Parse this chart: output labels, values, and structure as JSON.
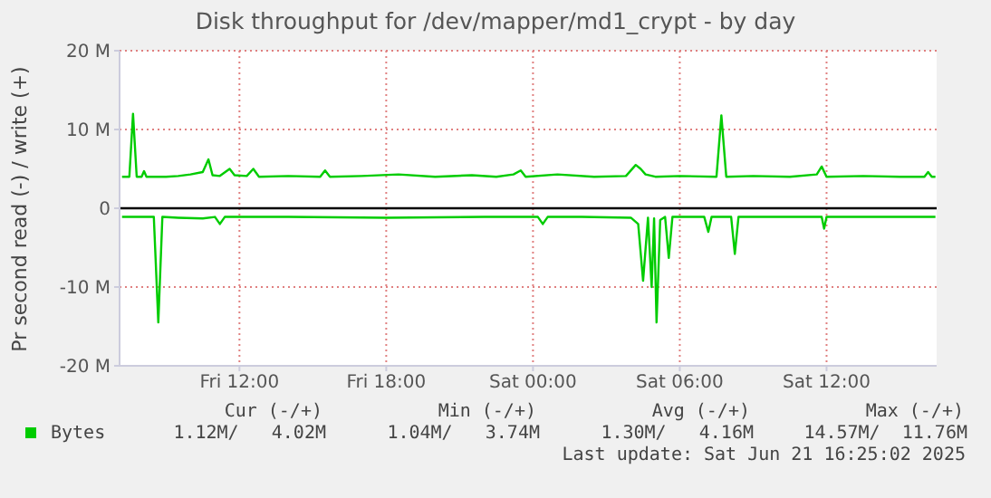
{
  "chart_data": {
    "type": "line",
    "title": "Disk throughput for /dev/mapper/md1_crypt - by day",
    "ylabel": "Pr second read (-) / write (+)",
    "xlim": [
      "2025-06-20T07:06",
      "2025-06-21T16:30"
    ],
    "xticks": [
      {
        "value": "2025-06-20T12:00",
        "label": "Fri 12:00"
      },
      {
        "value": "2025-06-20T18:00",
        "label": "Fri 18:00"
      },
      {
        "value": "2025-06-21T00:00",
        "label": "Sat 00:00"
      },
      {
        "value": "2025-06-21T06:00",
        "label": "Sat 06:00"
      },
      {
        "value": "2025-06-21T12:00",
        "label": "Sat 12:00"
      }
    ],
    "ylim": [
      -20,
      20
    ],
    "yticks": [
      {
        "value": -20,
        "label": "-20 M"
      },
      {
        "value": -10,
        "label": "-10 M"
      },
      0,
      {
        "value": 10,
        "label": "10 M"
      },
      {
        "value": 20,
        "label": "20 M"
      }
    ],
    "grid": true,
    "legend": "bottom",
    "marker": "none",
    "ref_lines": [
      {
        "axis": "y",
        "value": 0,
        "color": "#000000"
      }
    ],
    "series": [
      {
        "name": "Bytes",
        "color": "#00cc00",
        "x": [
          "2025-06-20T07:12",
          "2025-06-20T07:30",
          "2025-06-20T07:39",
          "2025-06-20T07:48",
          "2025-06-20T08:00",
          "2025-06-20T08:06",
          "2025-06-20T08:12",
          "2025-06-20T09:00",
          "2025-06-20T09:30",
          "2025-06-20T10:00",
          "2025-06-20T10:30",
          "2025-06-20T10:44",
          "2025-06-20T10:54",
          "2025-06-20T11:12",
          "2025-06-20T11:36",
          "2025-06-20T11:48",
          "2025-06-20T12:18",
          "2025-06-20T12:34",
          "2025-06-20T12:48",
          "2025-06-20T14:00",
          "2025-06-20T15:18",
          "2025-06-20T15:30",
          "2025-06-20T15:42",
          "2025-06-20T17:00",
          "2025-06-20T18:30",
          "2025-06-20T20:00",
          "2025-06-20T21:30",
          "2025-06-20T22:30",
          "2025-06-20T23:12",
          "2025-06-20T23:30",
          "2025-06-20T23:42",
          "2025-06-21T01:00",
          "2025-06-21T02:30",
          "2025-06-21T03:48",
          "2025-06-21T04:12",
          "2025-06-21T04:24",
          "2025-06-21T04:36",
          "2025-06-21T05:00",
          "2025-06-21T06:00",
          "2025-06-21T07:30",
          "2025-06-21T07:42",
          "2025-06-21T07:54",
          "2025-06-21T09:00",
          "2025-06-21T10:30",
          "2025-06-21T11:36",
          "2025-06-21T11:48",
          "2025-06-21T12:00",
          "2025-06-21T13:30",
          "2025-06-21T15:00",
          "2025-06-21T16:00",
          "2025-06-21T16:09",
          "2025-06-21T16:18",
          "2025-06-21T16:27"
        ],
        "values": [
          4.0,
          4.0,
          12.0,
          4.0,
          4.0,
          4.7,
          4.0,
          4.0,
          4.1,
          4.3,
          4.6,
          6.2,
          4.2,
          4.1,
          5.0,
          4.2,
          4.1,
          5.0,
          4.0,
          4.1,
          4.0,
          4.8,
          4.0,
          4.1,
          4.3,
          4.0,
          4.2,
          4.0,
          4.3,
          4.8,
          4.0,
          4.3,
          4.0,
          4.1,
          5.5,
          5.0,
          4.3,
          4.0,
          4.1,
          4.0,
          11.8,
          4.0,
          4.1,
          4.0,
          4.3,
          5.3,
          4.0,
          4.1,
          4.0,
          4.0,
          4.6,
          4.0,
          4.0
        ]
      },
      {
        "color": "#00cc00",
        "x": [
          "2025-06-20T07:12",
          "2025-06-20T08:30",
          "2025-06-20T08:41",
          "2025-06-20T08:51",
          "2025-06-20T09:30",
          "2025-06-20T10:30",
          "2025-06-20T11:00",
          "2025-06-20T11:12",
          "2025-06-20T11:24",
          "2025-06-20T14:00",
          "2025-06-20T18:00",
          "2025-06-20T22:00",
          "2025-06-21T00:12",
          "2025-06-21T00:24",
          "2025-06-21T00:36",
          "2025-06-21T02:00",
          "2025-06-21T04:00",
          "2025-06-21T04:18",
          "2025-06-21T04:30",
          "2025-06-21T04:42",
          "2025-06-21T04:51",
          "2025-06-21T04:57",
          "2025-06-21T05:03",
          "2025-06-21T05:12",
          "2025-06-21T05:24",
          "2025-06-21T05:33",
          "2025-06-21T05:42",
          "2025-06-21T07:00",
          "2025-06-21T07:10",
          "2025-06-21T07:18",
          "2025-06-21T08:06",
          "2025-06-21T08:15",
          "2025-06-21T08:24",
          "2025-06-21T10:00",
          "2025-06-21T11:48",
          "2025-06-21T11:54",
          "2025-06-21T12:00",
          "2025-06-21T14:00",
          "2025-06-21T16:27"
        ],
        "values": [
          -1.1,
          -1.1,
          -14.5,
          -1.1,
          -1.2,
          -1.3,
          -1.1,
          -2.0,
          -1.1,
          -1.1,
          -1.2,
          -1.1,
          -1.1,
          -2.0,
          -1.1,
          -1.1,
          -1.2,
          -2.0,
          -9.2,
          -1.2,
          -10.0,
          -1.3,
          -14.5,
          -1.5,
          -1.1,
          -6.3,
          -1.1,
          -1.1,
          -3.0,
          -1.1,
          -1.1,
          -5.8,
          -1.1,
          -1.1,
          -1.1,
          -2.6,
          -1.1,
          -1.1,
          -1.1
        ]
      }
    ],
    "annotations": [
      "Cur (-/+)",
      "Min (-/+)",
      "Avg (-/+)",
      "Max (-/+)",
      "1.12M/   4.02M",
      "1.04M/   3.74M",
      "1.30M/   4.16M",
      "14.57M/  11.76M",
      "Last update: Sat Jun 21 16:25:02 2025"
    ]
  }
}
